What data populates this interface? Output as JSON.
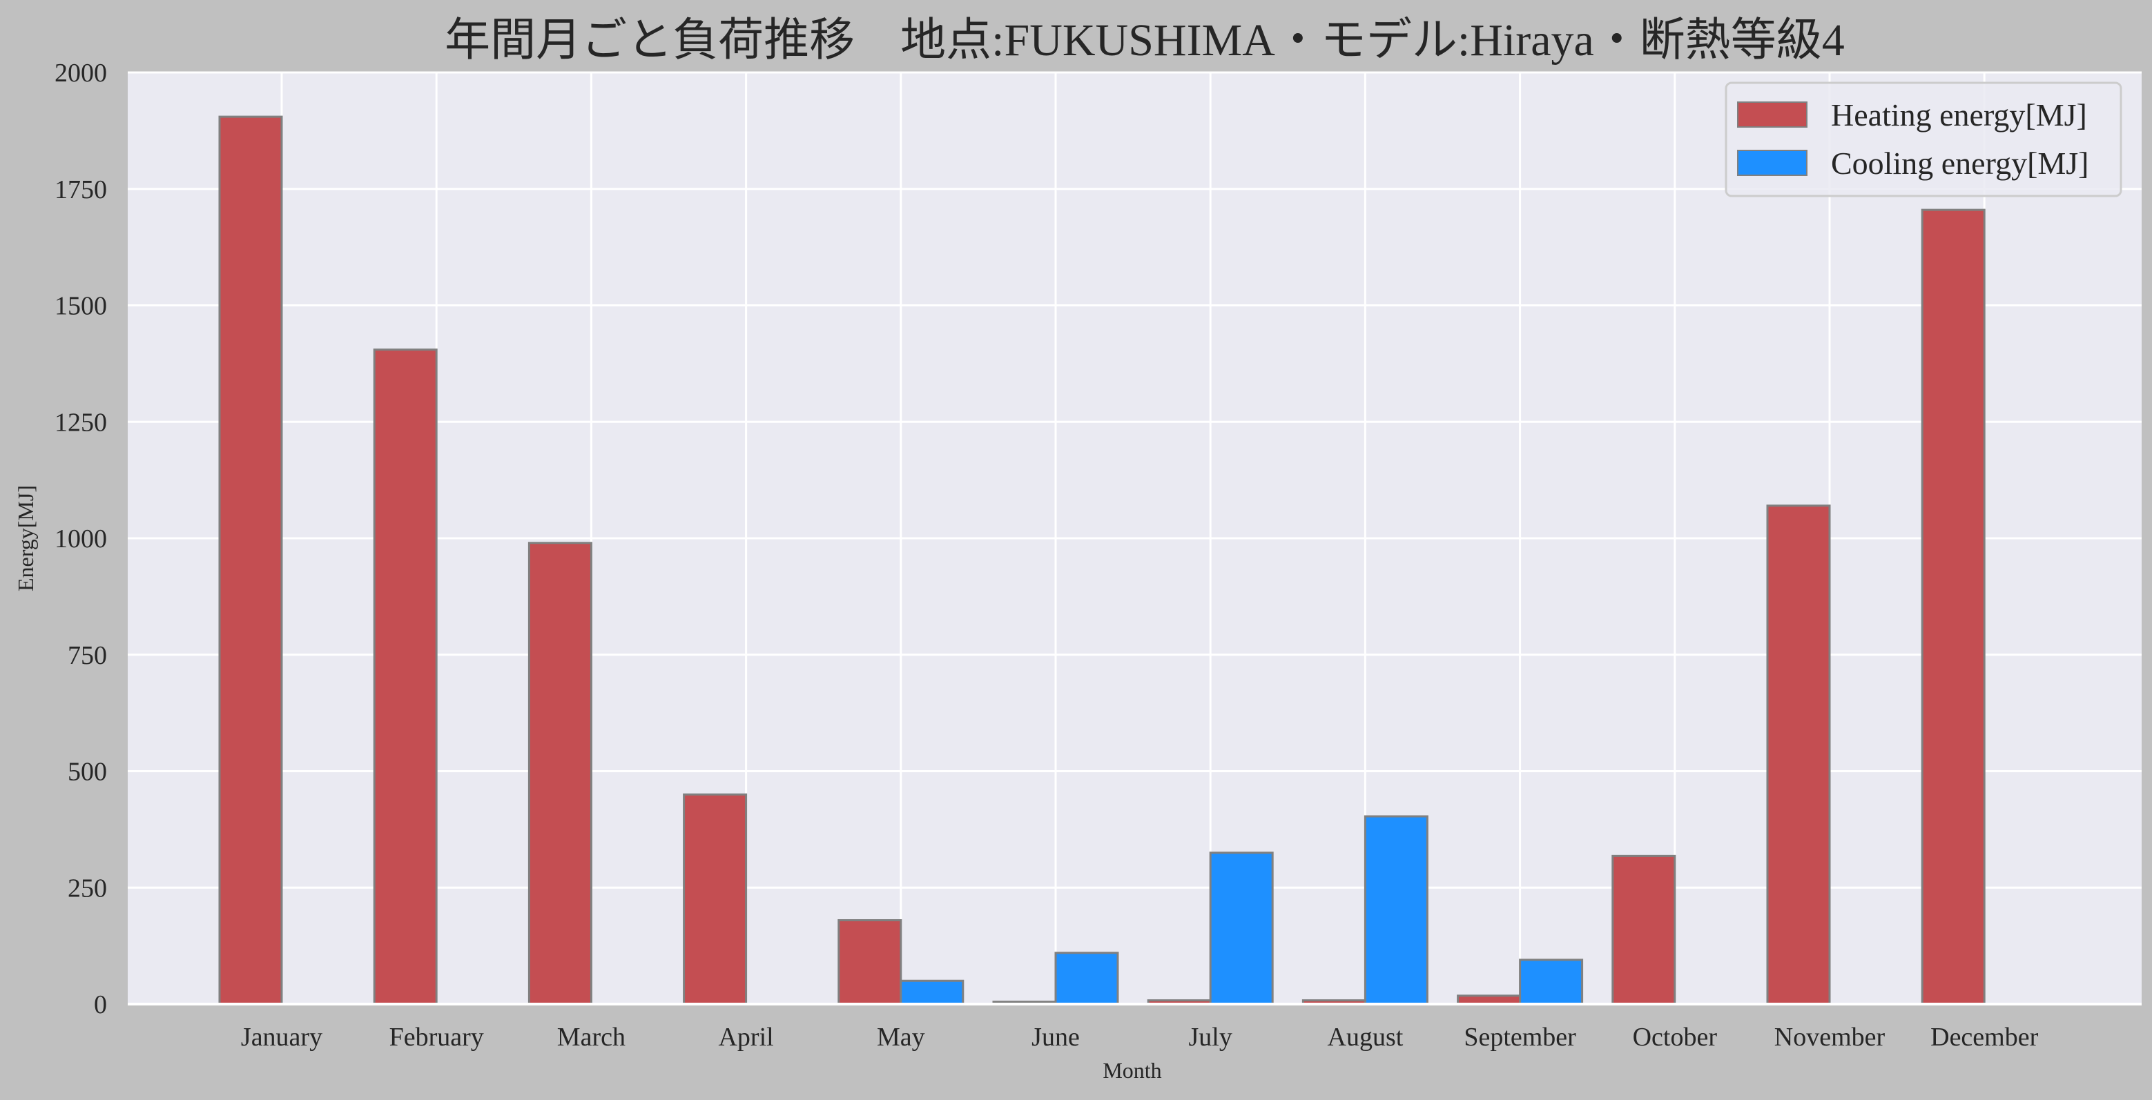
{
  "chart_data": {
    "type": "bar",
    "title": "年間月ごと負荷推移　地点:FUKUSHIMA・モデル:Hiraya・断熱等級4",
    "xlabel": "Month",
    "ylabel": "Energy[MJ]",
    "ylim": [
      0,
      2000
    ],
    "yticks": [
      0,
      250,
      500,
      750,
      1000,
      1250,
      1500,
      1750,
      2000
    ],
    "grid": true,
    "legend_position": "top-right",
    "categories": [
      "January",
      "February",
      "March",
      "April",
      "May",
      "June",
      "July",
      "August",
      "September",
      "October",
      "November",
      "December"
    ],
    "series": [
      {
        "name": "Heating energy[MJ]",
        "color": "#c44e52",
        "values": [
          1905,
          1405,
          990,
          450,
          180,
          5,
          8,
          8,
          18,
          318,
          1070,
          1705
        ]
      },
      {
        "name": "Cooling energy[MJ]",
        "color": "#1e90ff",
        "values": [
          0,
          0,
          0,
          0,
          50,
          110,
          325,
          403,
          95,
          0,
          0,
          0
        ]
      }
    ]
  }
}
